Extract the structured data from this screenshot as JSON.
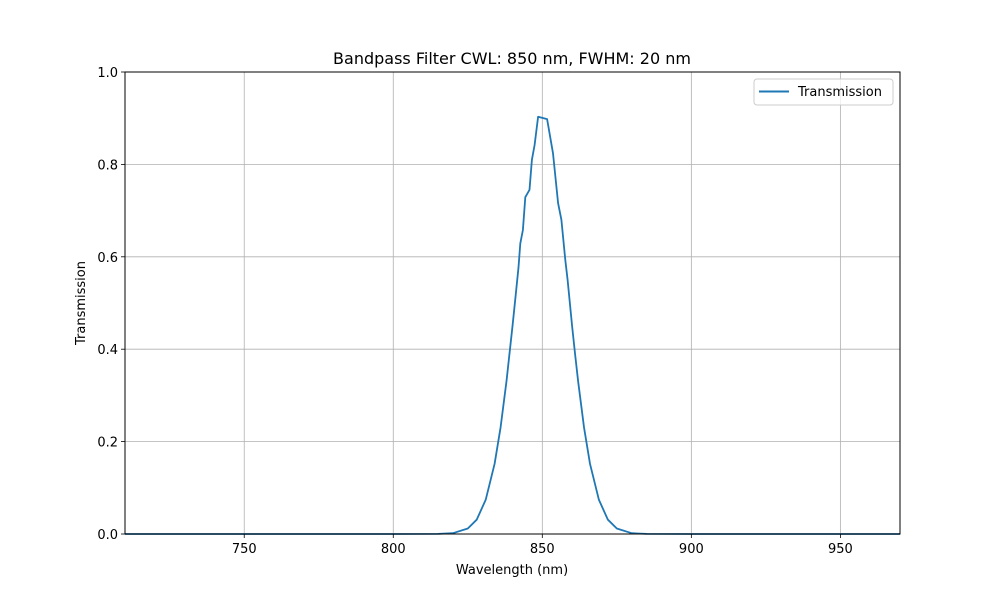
{
  "chart_data": {
    "type": "line",
    "title": "Bandpass Filter CWL: 850 nm, FWHM: 20 nm",
    "xlabel": "Wavelength (nm)",
    "ylabel": "Transmission",
    "xlim": [
      710,
      970
    ],
    "ylim": [
      0,
      1.0
    ],
    "xticks": [
      750,
      800,
      850,
      900,
      950
    ],
    "yticks": [
      0.0,
      0.2,
      0.4,
      0.6,
      0.8,
      1.0
    ],
    "xtick_labels": [
      "750",
      "800",
      "850",
      "900",
      "950"
    ],
    "ytick_labels": [
      "0.0",
      "0.2",
      "0.4",
      "0.6",
      "0.8",
      "1.0"
    ],
    "grid": true,
    "legend_position": "top-right",
    "series": [
      {
        "name": "Transmission",
        "color": "#1f77b4",
        "x": [
          710,
          800,
          815,
          820,
          825,
          828,
          831,
          834,
          836,
          838,
          840,
          841,
          842,
          842.6,
          843.5,
          844.3,
          845.7,
          846.5,
          847.4,
          848.6,
          851.6,
          853.6,
          855.3,
          856.4,
          857.7,
          858.5,
          860,
          861,
          862,
          864,
          866,
          869,
          872,
          875,
          880,
          885,
          900,
          970
        ],
        "y": [
          0,
          0,
          0.0002,
          0.0018,
          0.0118,
          0.031,
          0.074,
          0.152,
          0.231,
          0.331,
          0.45,
          0.513,
          0.577,
          0.629,
          0.658,
          0.729,
          0.745,
          0.81,
          0.842,
          0.903,
          0.898,
          0.824,
          0.716,
          0.68,
          0.593,
          0.55,
          0.45,
          0.389,
          0.331,
          0.231,
          0.152,
          0.074,
          0.031,
          0.0118,
          0.0018,
          0.0002,
          0,
          0
        ]
      }
    ]
  }
}
